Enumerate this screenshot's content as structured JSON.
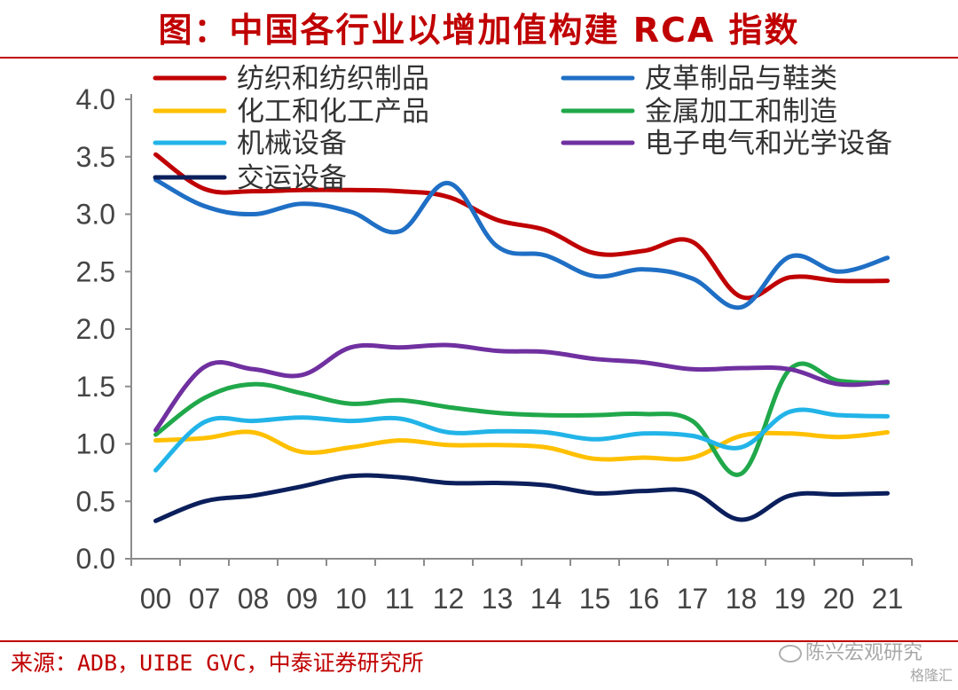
{
  "header": {
    "title": "图：中国各行业以增加值构建 RCA 指数"
  },
  "footer": {
    "source": "来源：ADB，UIBE GVC，中泰证券研究所",
    "watermark": "陈兴宏观研究",
    "watermark2": "格隆汇"
  },
  "chart_data": {
    "type": "line",
    "title": "图：中国各行业以增加值构建 RCA 指数",
    "categories": [
      "00",
      "07",
      "08",
      "09",
      "10",
      "11",
      "12",
      "13",
      "14",
      "15",
      "16",
      "17",
      "18",
      "19",
      "20",
      "21"
    ],
    "y_ticks": [
      "0.0",
      "0.5",
      "1.0",
      "1.5",
      "2.0",
      "2.5",
      "3.0",
      "3.5",
      "4.0"
    ],
    "ylim": [
      0,
      4
    ],
    "grid": false,
    "legend_position": "top",
    "series": [
      {
        "name": "纺织和纺织制品",
        "color": "#c00000",
        "values": [
          3.52,
          3.22,
          3.2,
          3.21,
          3.21,
          3.2,
          3.15,
          2.95,
          2.86,
          2.66,
          2.68,
          2.76,
          2.28,
          2.45,
          2.42,
          2.42
        ]
      },
      {
        "name": "皮革制品与鞋类",
        "color": "#1f6fc5",
        "values": [
          3.3,
          3.07,
          3.0,
          3.09,
          3.02,
          2.85,
          3.27,
          2.72,
          2.64,
          2.46,
          2.52,
          2.44,
          2.19,
          2.63,
          2.5,
          2.62
        ]
      },
      {
        "name": "化工和化工产品",
        "color": "#ffc000",
        "values": [
          1.03,
          1.05,
          1.1,
          0.93,
          0.97,
          1.03,
          0.99,
          0.99,
          0.97,
          0.87,
          0.88,
          0.88,
          1.07,
          1.09,
          1.06,
          1.1
        ]
      },
      {
        "name": "金属加工和制造",
        "color": "#20a84a",
        "values": [
          1.08,
          1.4,
          1.52,
          1.44,
          1.35,
          1.38,
          1.32,
          1.27,
          1.25,
          1.25,
          1.26,
          1.2,
          0.74,
          1.65,
          1.55,
          1.53
        ]
      },
      {
        "name": "机械设备",
        "color": "#22b4e8",
        "values": [
          0.77,
          1.19,
          1.2,
          1.23,
          1.2,
          1.22,
          1.1,
          1.11,
          1.1,
          1.04,
          1.09,
          1.07,
          0.97,
          1.28,
          1.25,
          1.24
        ]
      },
      {
        "name": "电子电气和光学设备",
        "color": "#7030a0",
        "values": [
          1.12,
          1.67,
          1.65,
          1.6,
          1.84,
          1.84,
          1.86,
          1.81,
          1.8,
          1.74,
          1.71,
          1.65,
          1.66,
          1.65,
          1.52,
          1.54
        ]
      },
      {
        "name": "交运设备",
        "color": "#0b1f5c",
        "values": [
          0.33,
          0.5,
          0.55,
          0.63,
          0.72,
          0.71,
          0.66,
          0.66,
          0.64,
          0.57,
          0.59,
          0.58,
          0.34,
          0.55,
          0.56,
          0.57
        ]
      }
    ]
  }
}
